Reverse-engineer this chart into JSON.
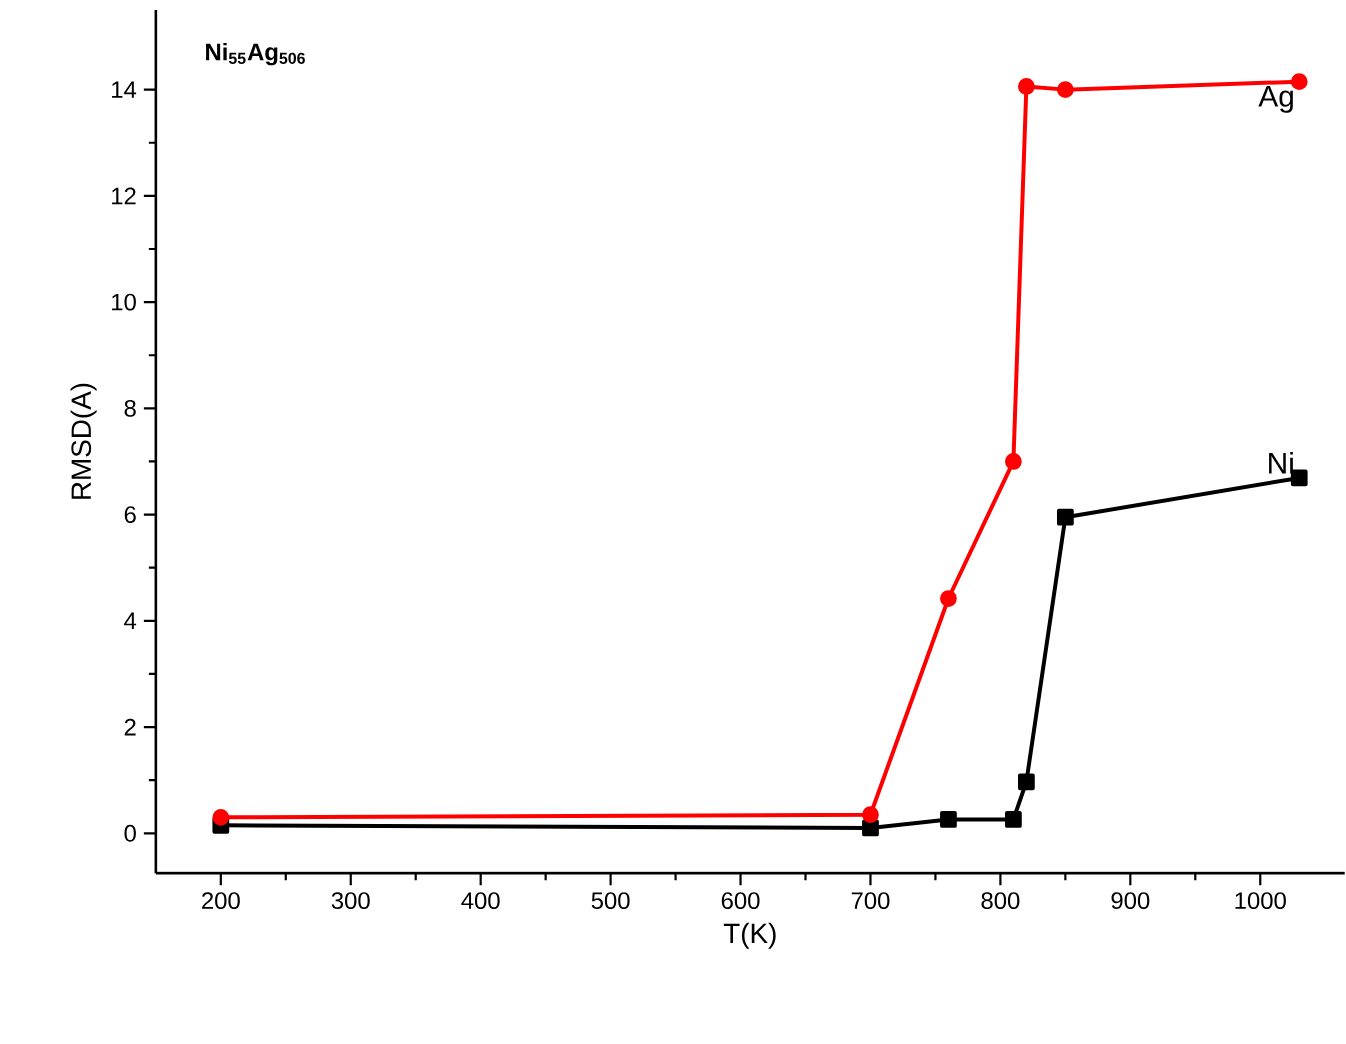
{
  "chart_data": {
    "type": "line",
    "title": "Ni$_{55}$Ag$_{506}$",
    "xlabel": "T(K)",
    "ylabel": "RMSD(A)",
    "xlim": [
      150,
      1065
    ],
    "ylim": [
      -0.75,
      15.5
    ],
    "xticks": [
      200,
      300,
      400,
      500,
      600,
      700,
      800,
      900,
      1000
    ],
    "yticks": [
      0,
      2,
      4,
      6,
      8,
      10,
      12,
      14
    ],
    "x": [
      200,
      700,
      760,
      810,
      820,
      850,
      1030
    ],
    "series": [
      {
        "name": "Ag",
        "color": "#ff0000",
        "marker": "circle",
        "values": [
          0.3,
          0.35,
          4.42,
          7.0,
          14.06,
          14.0,
          14.15
        ]
      },
      {
        "name": "Ni",
        "color": "#000000",
        "marker": "square",
        "values": [
          0.15,
          0.1,
          0.26,
          0.26,
          0.97,
          5.95,
          6.69
        ]
      }
    ]
  }
}
